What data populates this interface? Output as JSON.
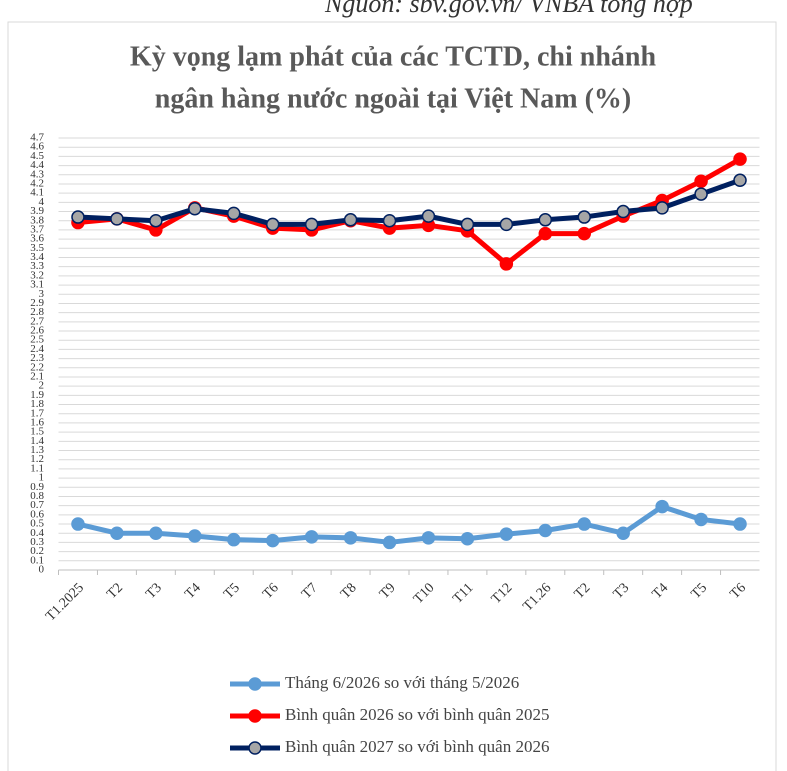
{
  "source": "Nguồn: sbv.gov.vn/ VNBA tổng hợp",
  "chart_data": {
    "type": "line",
    "title": [
      "Kỳ vọng lạm phát của các TCTD, chi nhánh",
      "ngân hàng nước ngoài tại Việt Nam (%)"
    ],
    "categories": [
      "T1.2025",
      "T2",
      "T3",
      "T4",
      "T5",
      "T6",
      "T7",
      "T8",
      "T9",
      "T10",
      "T11",
      "T12",
      "T1.26",
      "T2",
      "T3",
      "T4",
      "T5",
      "T6"
    ],
    "series": [
      {
        "name": "Tháng 6/2026 so với tháng 5/2026",
        "color": "#5b9bd5",
        "marker_color": "#5b9bd5",
        "values": [
          0.5,
          0.4,
          0.4,
          0.37,
          0.33,
          0.32,
          0.36,
          0.35,
          0.3,
          0.35,
          0.34,
          0.39,
          0.43,
          0.5,
          0.4,
          0.69,
          0.55,
          0.5
        ]
      },
      {
        "name": "Bình quân 2026 so với bình quân 2025",
        "color": "#ff0000",
        "marker_color": "#ff0000",
        "values": [
          3.78,
          3.82,
          3.7,
          3.94,
          3.85,
          3.72,
          3.7,
          3.8,
          3.72,
          3.75,
          3.69,
          3.33,
          3.66,
          3.66,
          3.85,
          4.02,
          4.23,
          4.47
        ]
      },
      {
        "name": "Bình quân 2027 so với bình quân 2026",
        "color": "#002060",
        "marker_color": "#a6a6a6",
        "values": [
          3.84,
          3.82,
          3.8,
          3.93,
          3.88,
          3.76,
          3.76,
          3.81,
          3.8,
          3.85,
          3.76,
          3.76,
          3.81,
          3.84,
          3.9,
          3.94,
          4.09,
          4.24
        ]
      }
    ],
    "ylim": [
      0,
      4.7
    ],
    "yticks": [
      0,
      0.1,
      0.2,
      0.3,
      0.4,
      0.5,
      0.6,
      0.7,
      0.8,
      0.9,
      1,
      1.1,
      1.2,
      1.3,
      1.4,
      1.5,
      1.6,
      1.7,
      1.8,
      1.9,
      2,
      2.1,
      2.2,
      2.3,
      2.4,
      2.5,
      2.6,
      2.7,
      2.8,
      2.9,
      3,
      3.1,
      3.2,
      3.3,
      3.4,
      3.5,
      3.6,
      3.7,
      3.8,
      3.9,
      4,
      4.1,
      4.2,
      4.3,
      4.4,
      4.5,
      4.6,
      4.7
    ],
    "grid": true
  }
}
